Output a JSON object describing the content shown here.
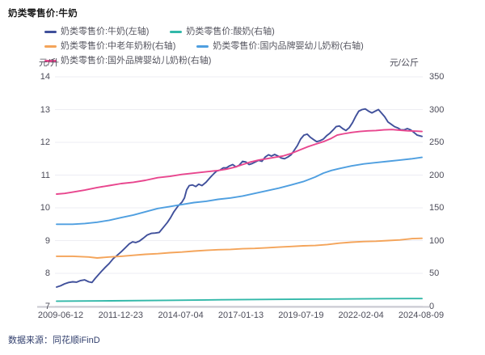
{
  "header": {
    "title": "奶类零售价:牛奶"
  },
  "footer": {
    "source": "数据来源：同花顺iFinD"
  },
  "chart_data": {
    "type": "line",
    "title": "奶类零售价:牛奶",
    "grid": true,
    "legend_position": "top",
    "x_axis": {
      "tick_labels": [
        "2009-06-12",
        "2011-12-23",
        "2014-07-04",
        "2017-01-13",
        "2019-07-19",
        "2022-02-04",
        "2024-08-09"
      ]
    },
    "left_axis": {
      "unit": "元/升",
      "min": 7,
      "max": 14,
      "ticks": [
        14,
        13,
        12,
        11,
        10,
        9,
        8,
        7
      ]
    },
    "right_axis": {
      "unit": "元/公斤",
      "min": 0,
      "max": 350,
      "ticks": [
        350,
        300,
        250,
        200,
        150,
        100,
        50,
        0
      ]
    },
    "colors": {
      "milk": "#40509b",
      "yogurt": "#32b8a9",
      "elder_powder": "#f4a45a",
      "domestic_infant_powder": "#4f9fe0",
      "foreign_infant_powder": "#e8468e",
      "gridline": "#ededf3",
      "axis_line": "#c9c9d0",
      "tick_text": "#4c4c59"
    },
    "series": [
      {
        "name": "奶类零售价:牛奶(左轴)",
        "axis": "left",
        "color": "#40509b",
        "points": [
          [
            0.0,
            7.58
          ],
          [
            0.011,
            7.62
          ],
          [
            0.022,
            7.68
          ],
          [
            0.033,
            7.72
          ],
          [
            0.044,
            7.74
          ],
          [
            0.055,
            7.73
          ],
          [
            0.066,
            7.78
          ],
          [
            0.077,
            7.8
          ],
          [
            0.088,
            7.74
          ],
          [
            0.097,
            7.72
          ],
          [
            0.106,
            7.85
          ],
          [
            0.122,
            8.05
          ],
          [
            0.133,
            8.18
          ],
          [
            0.144,
            8.3
          ],
          [
            0.155,
            8.45
          ],
          [
            0.166,
            8.55
          ],
          [
            0.177,
            8.66
          ],
          [
            0.188,
            8.78
          ],
          [
            0.199,
            8.9
          ],
          [
            0.208,
            8.96
          ],
          [
            0.217,
            8.94
          ],
          [
            0.226,
            8.98
          ],
          [
            0.237,
            9.07
          ],
          [
            0.248,
            9.17
          ],
          [
            0.259,
            9.22
          ],
          [
            0.27,
            9.23
          ],
          [
            0.281,
            9.25
          ],
          [
            0.292,
            9.4
          ],
          [
            0.303,
            9.55
          ],
          [
            0.312,
            9.7
          ],
          [
            0.321,
            9.88
          ],
          [
            0.332,
            10.05
          ],
          [
            0.343,
            10.17
          ],
          [
            0.35,
            10.3
          ],
          [
            0.356,
            10.55
          ],
          [
            0.363,
            10.68
          ],
          [
            0.372,
            10.7
          ],
          [
            0.381,
            10.65
          ],
          [
            0.389,
            10.72
          ],
          [
            0.398,
            10.68
          ],
          [
            0.409,
            10.78
          ],
          [
            0.42,
            10.92
          ],
          [
            0.431,
            11.05
          ],
          [
            0.438,
            11.12
          ],
          [
            0.447,
            11.15
          ],
          [
            0.456,
            11.22
          ],
          [
            0.465,
            11.22
          ],
          [
            0.473,
            11.28
          ],
          [
            0.482,
            11.32
          ],
          [
            0.491,
            11.25
          ],
          [
            0.5,
            11.3
          ],
          [
            0.509,
            11.42
          ],
          [
            0.518,
            11.4
          ],
          [
            0.527,
            11.32
          ],
          [
            0.535,
            11.35
          ],
          [
            0.544,
            11.4
          ],
          [
            0.553,
            11.45
          ],
          [
            0.562,
            11.42
          ],
          [
            0.571,
            11.55
          ],
          [
            0.58,
            11.62
          ],
          [
            0.588,
            11.58
          ],
          [
            0.597,
            11.63
          ],
          [
            0.606,
            11.58
          ],
          [
            0.615,
            11.52
          ],
          [
            0.624,
            11.5
          ],
          [
            0.633,
            11.55
          ],
          [
            0.642,
            11.62
          ],
          [
            0.65,
            11.75
          ],
          [
            0.659,
            11.9
          ],
          [
            0.668,
            12.1
          ],
          [
            0.677,
            12.22
          ],
          [
            0.686,
            12.25
          ],
          [
            0.695,
            12.15
          ],
          [
            0.704,
            12.08
          ],
          [
            0.712,
            12.02
          ],
          [
            0.721,
            12.05
          ],
          [
            0.73,
            12.1
          ],
          [
            0.739,
            12.2
          ],
          [
            0.748,
            12.28
          ],
          [
            0.757,
            12.38
          ],
          [
            0.765,
            12.48
          ],
          [
            0.774,
            12.5
          ],
          [
            0.783,
            12.42
          ],
          [
            0.792,
            12.36
          ],
          [
            0.801,
            12.45
          ],
          [
            0.81,
            12.6
          ],
          [
            0.819,
            12.8
          ],
          [
            0.827,
            12.95
          ],
          [
            0.836,
            13.0
          ],
          [
            0.845,
            13.02
          ],
          [
            0.854,
            12.95
          ],
          [
            0.863,
            12.9
          ],
          [
            0.872,
            12.95
          ],
          [
            0.881,
            13.0
          ],
          [
            0.889,
            12.9
          ],
          [
            0.898,
            12.78
          ],
          [
            0.907,
            12.62
          ],
          [
            0.916,
            12.55
          ],
          [
            0.925,
            12.48
          ],
          [
            0.934,
            12.44
          ],
          [
            0.942,
            12.38
          ],
          [
            0.951,
            12.38
          ],
          [
            0.96,
            12.42
          ],
          [
            0.969,
            12.38
          ],
          [
            0.978,
            12.3
          ],
          [
            0.987,
            12.22
          ],
          [
            1.0,
            12.18
          ]
        ]
      },
      {
        "name": "奶类零售价:酸奶(右轴)",
        "axis": "right",
        "color": "#32b8a9",
        "points": [
          [
            0.0,
            7.5
          ],
          [
            0.15,
            8.0
          ],
          [
            0.3,
            8.8
          ],
          [
            0.45,
            9.6
          ],
          [
            0.6,
            10.2
          ],
          [
            0.75,
            10.8
          ],
          [
            0.9,
            11.3
          ],
          [
            1.0,
            11.5
          ]
        ]
      },
      {
        "name": "奶类零售价:中老年奶粉(右轴)",
        "axis": "right",
        "color": "#f4a45a",
        "points": [
          [
            0.0,
            76
          ],
          [
            0.044,
            76
          ],
          [
            0.088,
            75
          ],
          [
            0.111,
            73.5
          ],
          [
            0.144,
            75
          ],
          [
            0.177,
            76
          ],
          [
            0.21,
            77.5
          ],
          [
            0.243,
            79
          ],
          [
            0.277,
            80
          ],
          [
            0.31,
            81.5
          ],
          [
            0.343,
            82.5
          ],
          [
            0.376,
            84
          ],
          [
            0.409,
            85
          ],
          [
            0.442,
            86
          ],
          [
            0.476,
            86.5
          ],
          [
            0.509,
            87.5
          ],
          [
            0.542,
            88
          ],
          [
            0.575,
            89
          ],
          [
            0.608,
            90
          ],
          [
            0.642,
            91
          ],
          [
            0.675,
            92
          ],
          [
            0.708,
            92.5
          ],
          [
            0.741,
            94
          ],
          [
            0.774,
            96
          ],
          [
            0.807,
            97.5
          ],
          [
            0.841,
            98.5
          ],
          [
            0.874,
            99
          ],
          [
            0.907,
            100
          ],
          [
            0.94,
            101
          ],
          [
            0.973,
            103
          ],
          [
            1.0,
            103.5
          ]
        ]
      },
      {
        "name": "奶类零售价:国内品牌婴幼儿奶粉(右轴)",
        "axis": "right",
        "color": "#4f9fe0",
        "points": [
          [
            0.0,
            125
          ],
          [
            0.044,
            125
          ],
          [
            0.077,
            126
          ],
          [
            0.111,
            128
          ],
          [
            0.144,
            131
          ],
          [
            0.177,
            135
          ],
          [
            0.21,
            139
          ],
          [
            0.243,
            144
          ],
          [
            0.277,
            149
          ],
          [
            0.31,
            152
          ],
          [
            0.343,
            155
          ],
          [
            0.376,
            158
          ],
          [
            0.409,
            160
          ],
          [
            0.442,
            163
          ],
          [
            0.476,
            165
          ],
          [
            0.509,
            168
          ],
          [
            0.542,
            172
          ],
          [
            0.575,
            176
          ],
          [
            0.608,
            180
          ],
          [
            0.642,
            185
          ],
          [
            0.675,
            190
          ],
          [
            0.708,
            197
          ],
          [
            0.73,
            203
          ],
          [
            0.752,
            207
          ],
          [
            0.774,
            210
          ],
          [
            0.807,
            214
          ],
          [
            0.841,
            217
          ],
          [
            0.874,
            219
          ],
          [
            0.907,
            221
          ],
          [
            0.94,
            223
          ],
          [
            0.973,
            225
          ],
          [
            1.0,
            227
          ]
        ]
      },
      {
        "name": "奶类零售价:国外品牌婴幼儿奶粉(右轴)",
        "axis": "right",
        "color": "#e8468e",
        "points": [
          [
            0.0,
            171
          ],
          [
            0.022,
            172
          ],
          [
            0.044,
            174
          ],
          [
            0.077,
            177
          ],
          [
            0.111,
            181
          ],
          [
            0.144,
            184
          ],
          [
            0.177,
            187
          ],
          [
            0.21,
            189
          ],
          [
            0.243,
            192
          ],
          [
            0.277,
            196
          ],
          [
            0.31,
            198
          ],
          [
            0.343,
            201
          ],
          [
            0.376,
            203
          ],
          [
            0.409,
            205
          ],
          [
            0.442,
            207
          ],
          [
            0.465,
            209
          ],
          [
            0.487,
            212
          ],
          [
            0.509,
            216
          ],
          [
            0.531,
            220
          ],
          [
            0.553,
            223
          ],
          [
            0.575,
            225
          ],
          [
            0.597,
            227
          ],
          [
            0.619,
            229
          ],
          [
            0.642,
            233
          ],
          [
            0.664,
            238
          ],
          [
            0.686,
            243
          ],
          [
            0.708,
            247
          ],
          [
            0.73,
            251
          ],
          [
            0.752,
            256
          ],
          [
            0.768,
            261
          ],
          [
            0.785,
            263
          ],
          [
            0.807,
            265
          ],
          [
            0.83,
            266.5
          ],
          [
            0.852,
            267.5
          ],
          [
            0.874,
            268
          ],
          [
            0.896,
            269
          ],
          [
            0.918,
            269.5
          ],
          [
            0.94,
            268.5
          ],
          [
            0.962,
            267.5
          ],
          [
            0.985,
            267
          ],
          [
            1.0,
            266.5
          ]
        ]
      }
    ]
  }
}
